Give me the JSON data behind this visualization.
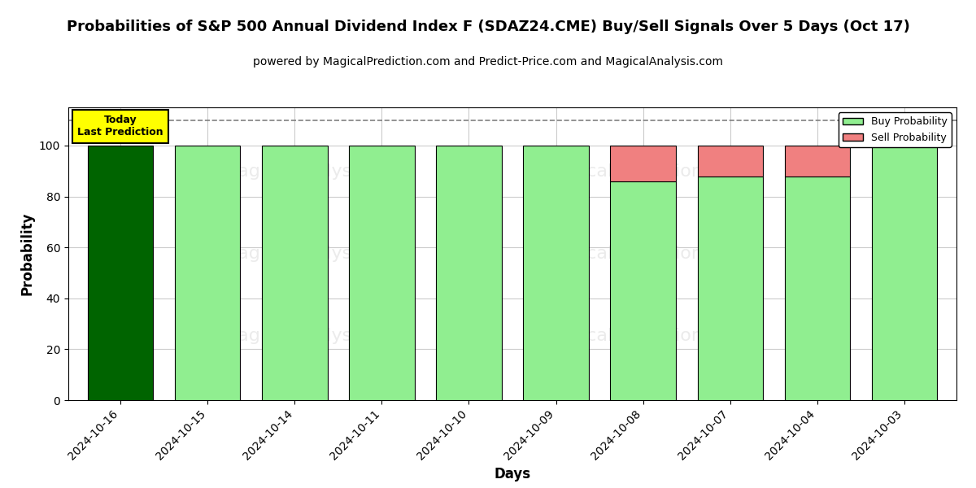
{
  "title": "Probabilities of S&P 500 Annual Dividend Index F (SDAZ24.CME) Buy/Sell Signals Over 5 Days (Oct 17)",
  "subtitle": "powered by MagicalPrediction.com and Predict-Price.com and MagicalAnalysis.com",
  "xlabel": "Days",
  "ylabel": "Probability",
  "categories": [
    "2024-10-16",
    "2024-10-15",
    "2024-10-14",
    "2024-10-11",
    "2024-10-10",
    "2024-10-09",
    "2024-10-08",
    "2024-10-07",
    "2024-10-04",
    "2024-10-03"
  ],
  "buy_values": [
    100,
    100,
    100,
    100,
    100,
    100,
    86,
    88,
    88,
    100
  ],
  "sell_values": [
    0,
    0,
    0,
    0,
    0,
    0,
    14,
    12,
    12,
    0
  ],
  "bar0_color": "#006400",
  "buy_color": "#90EE90",
  "sell_color": "#F08080",
  "dashed_line_y": 110,
  "ylim": [
    0,
    115
  ],
  "yticks": [
    0,
    20,
    40,
    60,
    80,
    100
  ],
  "today_label": "Today\nLast Prediction",
  "today_bg": "#FFFF00",
  "today_border": "#000000",
  "legend_buy_label": "Buy Probability",
  "legend_sell_label": "Sell Probability",
  "background_color": "#ffffff",
  "grid_color": "#cccccc",
  "title_fontsize": 13,
  "subtitle_fontsize": 10,
  "axis_label_fontsize": 12,
  "tick_fontsize": 10,
  "bar_width": 0.75
}
